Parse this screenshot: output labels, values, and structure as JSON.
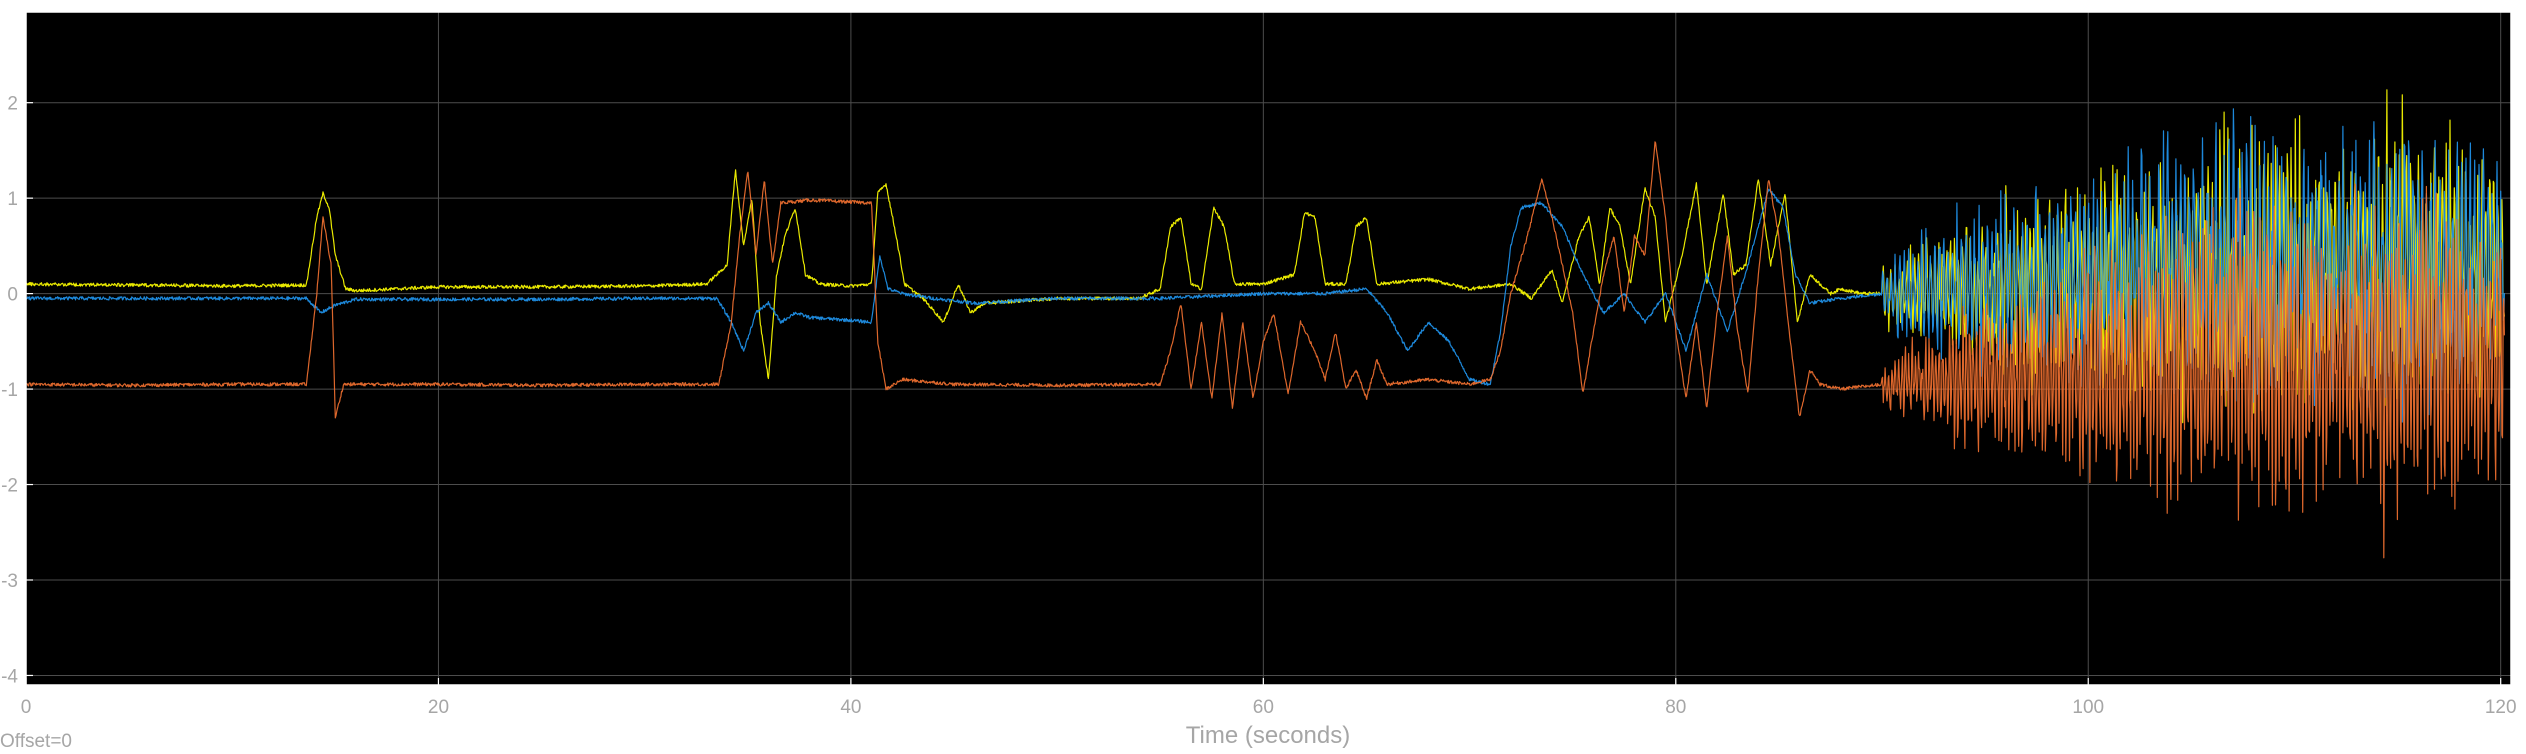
{
  "chart_data": {
    "type": "line",
    "title": "",
    "xlabel": "Time (seconds)",
    "ylabel": "",
    "offset_label": "Offset=0",
    "xlim": [
      0,
      120.5
    ],
    "ylim": [
      -4.1,
      2.95
    ],
    "x_ticks": [
      0,
      20,
      40,
      60,
      80,
      100,
      120
    ],
    "y_ticks": [
      -4,
      -3,
      -2,
      -1,
      0,
      1,
      2
    ],
    "grid": true,
    "legend": "none",
    "colors": {
      "background": "#000000",
      "grid": "#4d4d4d",
      "frame": "#ffffff"
    },
    "series": [
      {
        "color": "#f5f500",
        "stroke_width": 1.2,
        "points": [
          [
            0,
            0.1
          ],
          [
            5,
            0.09
          ],
          [
            10,
            0.08
          ],
          [
            13.6,
            0.09
          ],
          [
            14.1,
            0.8
          ],
          [
            14.4,
            1.05
          ],
          [
            14.7,
            0.9
          ],
          [
            15,
            0.4
          ],
          [
            15.5,
            0.05
          ],
          [
            16,
            0.03
          ],
          [
            20,
            0.07
          ],
          [
            25,
            0.07
          ],
          [
            30,
            0.08
          ],
          [
            33,
            0.1
          ],
          [
            34,
            0.3
          ],
          [
            34.4,
            1.3
          ],
          [
            34.8,
            0.5
          ],
          [
            35.2,
            1.0
          ],
          [
            35.6,
            -0.3
          ],
          [
            36,
            -0.9
          ],
          [
            36.4,
            0.2
          ],
          [
            36.8,
            0.6
          ],
          [
            37.3,
            0.9
          ],
          [
            37.8,
            0.2
          ],
          [
            38.5,
            0.1
          ],
          [
            40,
            0.08
          ],
          [
            41,
            0.1
          ],
          [
            41.3,
            1.05
          ],
          [
            41.7,
            1.15
          ],
          [
            42.2,
            0.6
          ],
          [
            42.6,
            0.1
          ],
          [
            43.5,
            -0.05
          ],
          [
            44.5,
            -0.3
          ],
          [
            45.2,
            0.1
          ],
          [
            45.8,
            -0.2
          ],
          [
            46.5,
            -0.1
          ],
          [
            50,
            -0.05
          ],
          [
            54,
            -0.05
          ],
          [
            55,
            0.05
          ],
          [
            55.5,
            0.7
          ],
          [
            56,
            0.8
          ],
          [
            56.5,
            0.1
          ],
          [
            57,
            0.05
          ],
          [
            57.6,
            0.9
          ],
          [
            58.1,
            0.7
          ],
          [
            58.6,
            0.1
          ],
          [
            60,
            0.1
          ],
          [
            61.5,
            0.2
          ],
          [
            62,
            0.85
          ],
          [
            62.5,
            0.8
          ],
          [
            63,
            0.1
          ],
          [
            64,
            0.1
          ],
          [
            64.5,
            0.7
          ],
          [
            65,
            0.8
          ],
          [
            65.5,
            0.1
          ],
          [
            68,
            0.15
          ],
          [
            70,
            0.05
          ],
          [
            72,
            0.1
          ],
          [
            73,
            -0.05
          ],
          [
            74,
            0.25
          ],
          [
            74.5,
            -0.1
          ],
          [
            75.3,
            0.6
          ],
          [
            75.8,
            0.8
          ],
          [
            76.3,
            0.1
          ],
          [
            76.8,
            0.9
          ],
          [
            77.3,
            0.7
          ],
          [
            77.8,
            0.1
          ],
          [
            78.5,
            1.1
          ],
          [
            79,
            0.8
          ],
          [
            79.5,
            -0.3
          ],
          [
            80.3,
            0.4
          ],
          [
            81,
            1.15
          ],
          [
            81.5,
            0.1
          ],
          [
            82.3,
            1.05
          ],
          [
            82.8,
            0.2
          ],
          [
            83.4,
            0.3
          ],
          [
            84,
            1.2
          ],
          [
            84.6,
            0.3
          ],
          [
            85.3,
            1.05
          ],
          [
            85.9,
            -0.3
          ],
          [
            86.5,
            0.2
          ],
          [
            87.5,
            0
          ],
          [
            88,
            0.05
          ],
          [
            89,
            0
          ],
          [
            90,
            0
          ]
        ]
      },
      {
        "color": "#1f8fe6",
        "stroke_width": 1.2,
        "points": [
          [
            0,
            -0.05
          ],
          [
            5,
            -0.05
          ],
          [
            10,
            -0.05
          ],
          [
            13.6,
            -0.05
          ],
          [
            14.3,
            -0.2
          ],
          [
            15,
            -0.12
          ],
          [
            16,
            -0.06
          ],
          [
            20,
            -0.06
          ],
          [
            25,
            -0.06
          ],
          [
            30,
            -0.05
          ],
          [
            33.5,
            -0.05
          ],
          [
            34.2,
            -0.3
          ],
          [
            34.8,
            -0.6
          ],
          [
            35.4,
            -0.2
          ],
          [
            36,
            -0.1
          ],
          [
            36.6,
            -0.3
          ],
          [
            37.3,
            -0.2
          ],
          [
            38,
            -0.25
          ],
          [
            40,
            -0.28
          ],
          [
            41,
            -0.3
          ],
          [
            41.4,
            0.4
          ],
          [
            41.8,
            0.05
          ],
          [
            42.5,
            0
          ],
          [
            44,
            -0.05
          ],
          [
            46,
            -0.1
          ],
          [
            50,
            -0.05
          ],
          [
            55,
            -0.05
          ],
          [
            60,
            0
          ],
          [
            63,
            0
          ],
          [
            65,
            0.05
          ],
          [
            66,
            -0.2
          ],
          [
            67,
            -0.6
          ],
          [
            68,
            -0.3
          ],
          [
            69,
            -0.5
          ],
          [
            70,
            -0.9
          ],
          [
            71,
            -0.95
          ],
          [
            71.5,
            -0.4
          ],
          [
            72,
            0.5
          ],
          [
            72.5,
            0.9
          ],
          [
            73.5,
            0.95
          ],
          [
            74.5,
            0.7
          ],
          [
            75.5,
            0.2
          ],
          [
            76.5,
            -0.2
          ],
          [
            77.5,
            0
          ],
          [
            78.5,
            -0.3
          ],
          [
            79.5,
            0
          ],
          [
            80.5,
            -0.6
          ],
          [
            81.5,
            0.2
          ],
          [
            82.5,
            -0.4
          ],
          [
            83.5,
            0.3
          ],
          [
            84.5,
            1.1
          ],
          [
            85.2,
            0.9
          ],
          [
            85.8,
            0.2
          ],
          [
            86.5,
            -0.1
          ],
          [
            88,
            -0.05
          ],
          [
            90,
            0
          ]
        ]
      },
      {
        "color": "#f07030",
        "stroke_width": 1.2,
        "points": [
          [
            0,
            -0.95
          ],
          [
            5,
            -0.96
          ],
          [
            10,
            -0.95
          ],
          [
            13.6,
            -0.95
          ],
          [
            14.1,
            0
          ],
          [
            14.4,
            0.8
          ],
          [
            14.8,
            0.3
          ],
          [
            15,
            -1.3
          ],
          [
            15.4,
            -0.95
          ],
          [
            20,
            -0.95
          ],
          [
            25,
            -0.96
          ],
          [
            30,
            -0.95
          ],
          [
            33.6,
            -0.95
          ],
          [
            34.2,
            -0.3
          ],
          [
            34.6,
            0.6
          ],
          [
            35,
            1.3
          ],
          [
            35.4,
            0.4
          ],
          [
            35.8,
            1.2
          ],
          [
            36.2,
            0.3
          ],
          [
            36.6,
            0.95
          ],
          [
            38,
            0.98
          ],
          [
            40,
            0.96
          ],
          [
            41,
            0.95
          ],
          [
            41.3,
            -0.5
          ],
          [
            41.7,
            -1.0
          ],
          [
            42.5,
            -0.9
          ],
          [
            45,
            -0.95
          ],
          [
            50,
            -0.96
          ],
          [
            55,
            -0.95
          ],
          [
            55.5,
            -0.6
          ],
          [
            56,
            -0.1
          ],
          [
            56.5,
            -1.0
          ],
          [
            57,
            -0.3
          ],
          [
            57.5,
            -1.1
          ],
          [
            58,
            -0.2
          ],
          [
            58.5,
            -1.2
          ],
          [
            59,
            -0.3
          ],
          [
            59.5,
            -1.1
          ],
          [
            60,
            -0.5
          ],
          [
            60.5,
            -0.2
          ],
          [
            61.2,
            -1.05
          ],
          [
            61.8,
            -0.3
          ],
          [
            62.5,
            -0.6
          ],
          [
            63,
            -0.9
          ],
          [
            63.5,
            -0.4
          ],
          [
            64,
            -1.0
          ],
          [
            64.5,
            -0.8
          ],
          [
            65,
            -1.1
          ],
          [
            65.5,
            -0.7
          ],
          [
            66,
            -0.95
          ],
          [
            68,
            -0.9
          ],
          [
            70,
            -0.95
          ],
          [
            71,
            -0.9
          ],
          [
            71.5,
            -0.6
          ],
          [
            72,
            0
          ],
          [
            72.8,
            0.6
          ],
          [
            73.5,
            1.2
          ],
          [
            74,
            0.8
          ],
          [
            74.5,
            0.3
          ],
          [
            75,
            -0.2
          ],
          [
            75.5,
            -1.05
          ],
          [
            76,
            -0.4
          ],
          [
            76.5,
            0.2
          ],
          [
            77,
            0.6
          ],
          [
            77.5,
            -0.2
          ],
          [
            78,
            0.6
          ],
          [
            78.5,
            0.4
          ],
          [
            79,
            1.6
          ],
          [
            79.5,
            0.8
          ],
          [
            80,
            -0.4
          ],
          [
            80.5,
            -1.1
          ],
          [
            81,
            -0.3
          ],
          [
            81.5,
            -1.2
          ],
          [
            82,
            -0.2
          ],
          [
            82.5,
            0.6
          ],
          [
            83,
            -0.4
          ],
          [
            83.5,
            -1.05
          ],
          [
            84,
            0.2
          ],
          [
            84.5,
            1.2
          ],
          [
            85,
            0.6
          ],
          [
            85.5,
            -0.4
          ],
          [
            86,
            -1.3
          ],
          [
            86.5,
            -0.8
          ],
          [
            87,
            -0.95
          ],
          [
            88,
            -1.0
          ],
          [
            90,
            -0.95
          ]
        ]
      }
    ]
  }
}
